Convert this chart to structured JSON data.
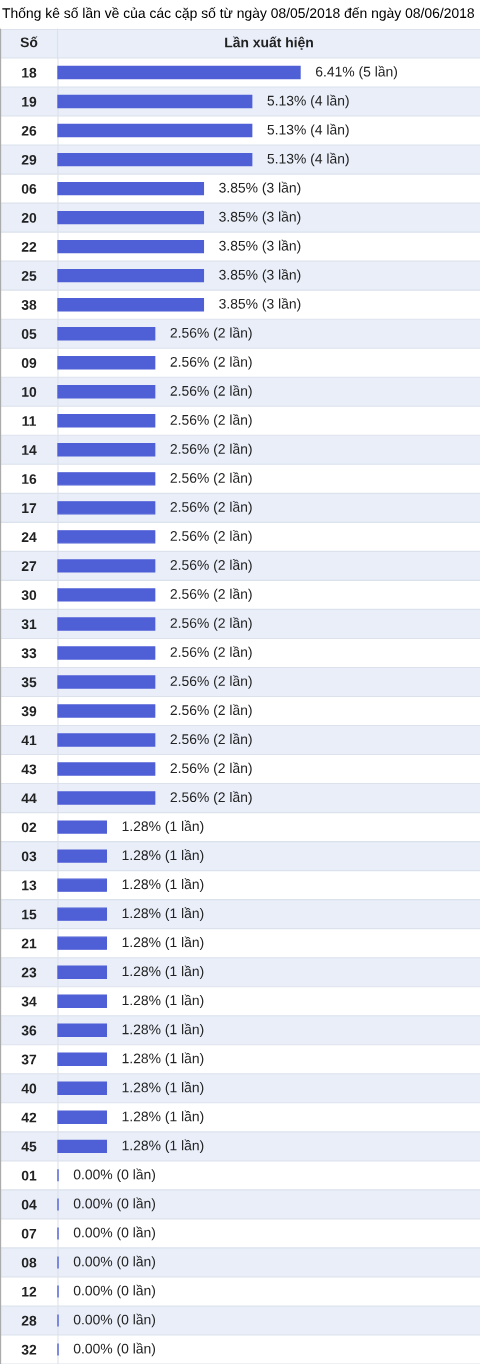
{
  "chart_data": {
    "type": "bar",
    "orientation": "horizontal",
    "title": "Thống kê số lần về của các cặp số từ ngày 08/05/2018 đến ngày 08/06/2018",
    "xlabel": "Lần xuất hiện",
    "ylabel": "Số",
    "tick_labels": "y",
    "color": "#4f5fd6",
    "categories": [
      "18",
      "19",
      "26",
      "29",
      "06",
      "20",
      "22",
      "25",
      "38",
      "05",
      "09",
      "10",
      "11",
      "14",
      "16",
      "17",
      "24",
      "27",
      "30",
      "31",
      "33",
      "35",
      "39",
      "41",
      "43",
      "44",
      "02",
      "03",
      "13",
      "15",
      "21",
      "23",
      "34",
      "36",
      "37",
      "40",
      "42",
      "45",
      "01",
      "04",
      "07",
      "08",
      "12",
      "28",
      "32"
    ],
    "values": [
      6.41,
      5.13,
      5.13,
      5.13,
      3.85,
      3.85,
      3.85,
      3.85,
      3.85,
      2.56,
      2.56,
      2.56,
      2.56,
      2.56,
      2.56,
      2.56,
      2.56,
      2.56,
      2.56,
      2.56,
      2.56,
      2.56,
      2.56,
      2.56,
      2.56,
      2.56,
      1.28,
      1.28,
      1.28,
      1.28,
      1.28,
      1.28,
      1.28,
      1.28,
      1.28,
      1.28,
      1.28,
      1.28,
      0.0,
      0.0,
      0.0,
      0.0,
      0.0,
      0.0,
      0.0
    ],
    "value_labels": [
      "6.41% (5 lần)",
      "5.13% (4 lần)",
      "5.13% (4 lần)",
      "5.13% (4 lần)",
      "3.85% (3 lần)",
      "3.85% (3 lần)",
      "3.85% (3 lần)",
      "3.85% (3 lần)",
      "3.85% (3 lần)",
      "2.56% (2 lần)",
      "2.56% (2 lần)",
      "2.56% (2 lần)",
      "2.56% (2 lần)",
      "2.56% (2 lần)",
      "2.56% (2 lần)",
      "2.56% (2 lần)",
      "2.56% (2 lần)",
      "2.56% (2 lần)",
      "2.56% (2 lần)",
      "2.56% (2 lần)",
      "2.56% (2 lần)",
      "2.56% (2 lần)",
      "2.56% (2 lần)",
      "2.56% (2 lần)",
      "2.56% (2 lần)",
      "2.56% (2 lần)",
      "1.28% (1 lần)",
      "1.28% (1 lần)",
      "1.28% (1 lần)",
      "1.28% (1 lần)",
      "1.28% (1 lần)",
      "1.28% (1 lần)",
      "1.28% (1 lần)",
      "1.28% (1 lần)",
      "1.28% (1 lần)",
      "1.28% (1 lần)",
      "1.28% (1 lần)",
      "1.28% (1 lần)",
      "0.00% (0 lần)",
      "0.00% (0 lần)",
      "0.00% (0 lần)",
      "0.00% (0 lần)",
      "0.00% (0 lần)",
      "0.00% (0 lần)",
      "0.00% (0 lần)"
    ]
  }
}
